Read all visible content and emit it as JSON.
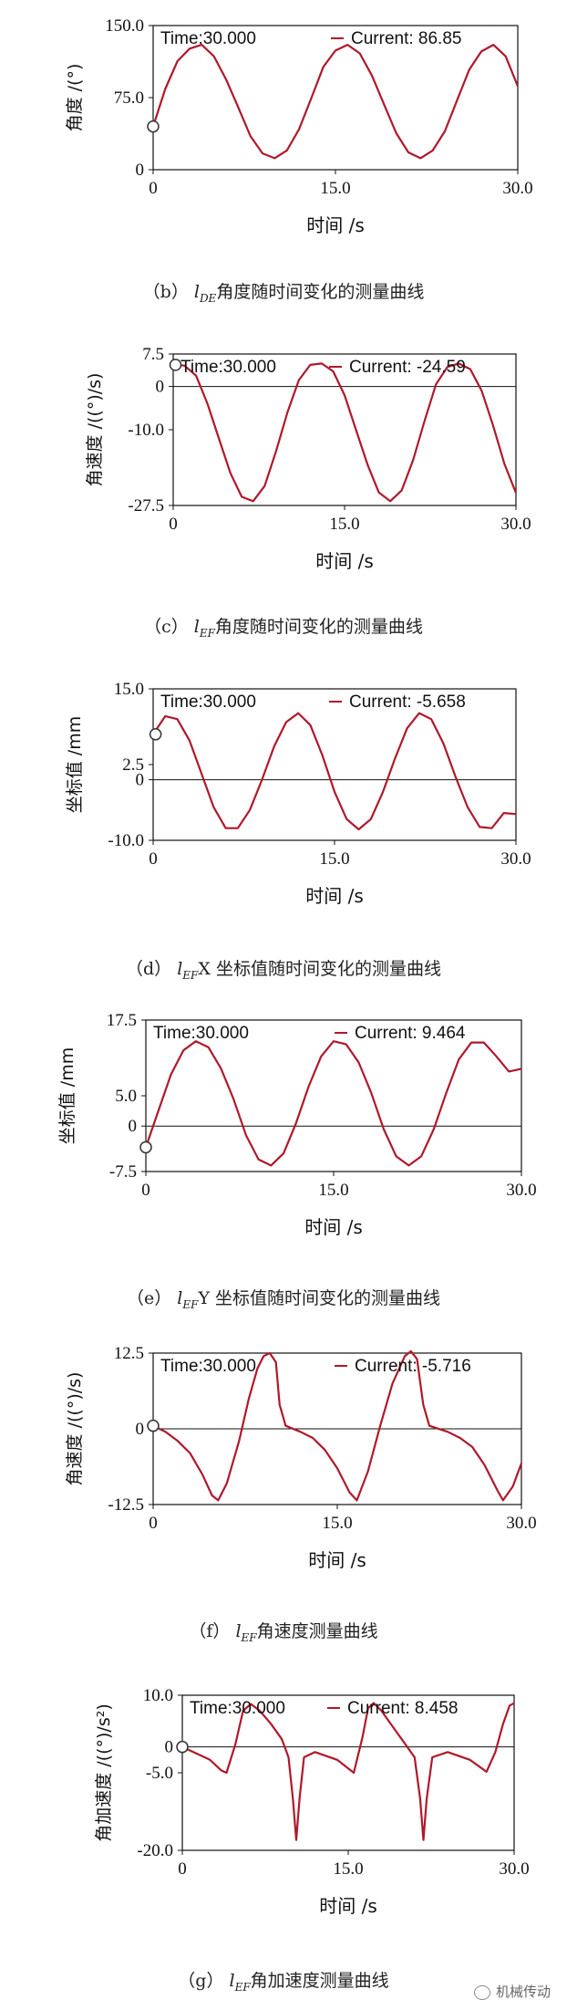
{
  "chart_data": [
    {
      "type": "line",
      "id": "b",
      "ylabel": "角度 /(°)",
      "xlabel": "时间 /s",
      "xlim": [
        0,
        30
      ],
      "ylim": [
        0,
        150
      ],
      "x_ticks": [
        "0",
        "15.0",
        "30.0"
      ],
      "y_ticks": [
        "0",
        "75.0",
        "150.0"
      ],
      "time_label": "Time:30.000",
      "current_label": "Current: 86.85",
      "series": [
        {
          "values": [
            [
              0,
              45
            ],
            [
              1.0,
              84
            ],
            [
              2.0,
              113
            ],
            [
              3.0,
              126
            ],
            [
              4.0,
              130
            ],
            [
              5.0,
              118
            ],
            [
              6.0,
              94
            ],
            [
              7.0,
              65
            ],
            [
              8.0,
              35
            ],
            [
              9.0,
              17
            ],
            [
              10.0,
              12
            ],
            [
              11.0,
              20
            ],
            [
              12.0,
              42
            ],
            [
              13.0,
              74
            ],
            [
              14.0,
              107
            ],
            [
              15.0,
              124
            ],
            [
              16.0,
              130
            ],
            [
              17.0,
              121
            ],
            [
              18.0,
              98
            ],
            [
              19.0,
              68
            ],
            [
              20.0,
              38
            ],
            [
              21.0,
              18
            ],
            [
              22.0,
              12
            ],
            [
              23.0,
              20
            ],
            [
              24.0,
              40
            ],
            [
              25.0,
              72
            ],
            [
              26.0,
              104
            ],
            [
              27.0,
              123
            ],
            [
              28.0,
              130
            ],
            [
              29.0,
              118
            ],
            [
              30.0,
              87
            ]
          ]
        }
      ],
      "marker": [
        0,
        45
      ]
    },
    {
      "type": "line",
      "id": "c",
      "ylabel": "角速度 /((°)/s)",
      "xlabel": "时间 /s",
      "xlim": [
        0,
        30
      ],
      "ylim": [
        -27.5,
        7.5
      ],
      "x_ticks": [
        "0",
        "15.0",
        "30.0"
      ],
      "y_ticks": [
        "7.5",
        "0",
        "-10.0",
        "-27.5"
      ],
      "time_label": "Time:30.000",
      "current_label": "Current: -24.59",
      "series": [
        {
          "values": [
            [
              0,
              5.2
            ],
            [
              1.0,
              4.8
            ],
            [
              2.0,
              2.5
            ],
            [
              3.0,
              -4
            ],
            [
              4.0,
              -12
            ],
            [
              5.0,
              -20
            ],
            [
              6.0,
              -25.5
            ],
            [
              7.0,
              -26.5
            ],
            [
              8.0,
              -23
            ],
            [
              9.0,
              -15
            ],
            [
              10.0,
              -6
            ],
            [
              11.0,
              1.5
            ],
            [
              12.0,
              5.0
            ],
            [
              13.0,
              5.3
            ],
            [
              14.0,
              3.5
            ],
            [
              15.0,
              -2
            ],
            [
              16.0,
              -10
            ],
            [
              17.0,
              -18
            ],
            [
              18.0,
              -24.5
            ],
            [
              19.0,
              -26.5
            ],
            [
              20.0,
              -24
            ],
            [
              21.0,
              -17
            ],
            [
              22.0,
              -8
            ],
            [
              23.0,
              0.5
            ],
            [
              24.0,
              4.5
            ],
            [
              25.0,
              5.3
            ],
            [
              26.0,
              4
            ],
            [
              27.0,
              -1
            ],
            [
              28.0,
              -9
            ],
            [
              29.0,
              -18
            ],
            [
              30.0,
              -24.6
            ]
          ]
        }
      ],
      "marker": [
        0.2,
        5.0
      ]
    },
    {
      "type": "line",
      "id": "d",
      "ylabel": "坐标值 /mm",
      "xlabel": "时间 /s",
      "xlim": [
        0,
        30
      ],
      "ylim": [
        -10,
        15
      ],
      "x_ticks": [
        "0",
        "15.0",
        "30.0"
      ],
      "y_ticks": [
        "15.0",
        "2.5",
        "0",
        "-10.0"
      ],
      "time_label": "Time:30.000",
      "current_label": "Current: -5.658",
      "series": [
        {
          "values": [
            [
              0,
              7.5
            ],
            [
              1.0,
              10.5
            ],
            [
              2.0,
              10.0
            ],
            [
              3.0,
              6.5
            ],
            [
              4.0,
              1.0
            ],
            [
              5.0,
              -4.5
            ],
            [
              6.0,
              -8.0
            ],
            [
              7.0,
              -8.0
            ],
            [
              8.0,
              -5.0
            ],
            [
              9.0,
              0.0
            ],
            [
              10.0,
              5.5
            ],
            [
              11.0,
              9.5
            ],
            [
              12.0,
              11.0
            ],
            [
              13.0,
              9.0
            ],
            [
              14.0,
              4.0
            ],
            [
              15.0,
              -2.0
            ],
            [
              16.0,
              -6.5
            ],
            [
              17.0,
              -8.2
            ],
            [
              18.0,
              -6.5
            ],
            [
              19.0,
              -2.0
            ],
            [
              20.0,
              3.5
            ],
            [
              21.0,
              8.5
            ],
            [
              22.0,
              11.0
            ],
            [
              23.0,
              10.0
            ],
            [
              24.0,
              6.0
            ],
            [
              25.0,
              0.5
            ],
            [
              26.0,
              -4.5
            ],
            [
              27.0,
              -7.8
            ],
            [
              28.0,
              -8.0
            ],
            [
              29.0,
              -5.5
            ],
            [
              30.0,
              -5.66
            ]
          ]
        }
      ],
      "marker": [
        0.2,
        7.5
      ]
    },
    {
      "type": "line",
      "id": "e",
      "ylabel": "坐标值 /mm",
      "xlabel": "时间 /s",
      "xlim": [
        0,
        30
      ],
      "ylim": [
        -7.5,
        17.5
      ],
      "x_ticks": [
        "0",
        "15.0",
        "30.0"
      ],
      "y_ticks": [
        "17.5",
        "5.0",
        "0",
        "-7.5"
      ],
      "time_label": "Time:30.000",
      "current_label": "Current: 9.464",
      "series": [
        {
          "values": [
            [
              0,
              -3.5
            ],
            [
              1.0,
              2.5
            ],
            [
              2.0,
              8.5
            ],
            [
              3.0,
              12.5
            ],
            [
              4.0,
              14.0
            ],
            [
              5.0,
              13.0
            ],
            [
              6.0,
              9.5
            ],
            [
              7.0,
              4.5
            ],
            [
              8.0,
              -1.5
            ],
            [
              9.0,
              -5.5
            ],
            [
              10.0,
              -6.5
            ],
            [
              11.0,
              -4.5
            ],
            [
              12.0,
              0.5
            ],
            [
              13.0,
              6.5
            ],
            [
              14.0,
              11.5
            ],
            [
              15.0,
              14.0
            ],
            [
              16.0,
              13.5
            ],
            [
              17.0,
              10.5
            ],
            [
              18.0,
              5.5
            ],
            [
              19.0,
              -0.5
            ],
            [
              20.0,
              -5.0
            ],
            [
              21.0,
              -6.5
            ],
            [
              22.0,
              -5.0
            ],
            [
              23.0,
              -0.5
            ],
            [
              24.0,
              5.5
            ],
            [
              25.0,
              11.0
            ],
            [
              26.0,
              13.8
            ],
            [
              27.0,
              13.8
            ],
            [
              28.0,
              11.5
            ],
            [
              29.0,
              9.0
            ],
            [
              30.0,
              9.46
            ]
          ]
        }
      ],
      "marker": [
        0,
        -3.5
      ]
    },
    {
      "type": "line",
      "id": "f",
      "ylabel": "角速度 /((°)/s)",
      "xlabel": "时间 /s",
      "xlim": [
        0,
        30
      ],
      "ylim": [
        -12.5,
        12.5
      ],
      "x_ticks": [
        "0",
        "15.0",
        "30.0"
      ],
      "y_ticks": [
        "12.5",
        "0",
        "-12.5"
      ],
      "time_label": "Time:30.000",
      "current_label": "Current: -5.716",
      "series": [
        {
          "values": [
            [
              0,
              0.5
            ],
            [
              1.0,
              -0.5
            ],
            [
              2.0,
              -2.0
            ],
            [
              3.0,
              -4.0
            ],
            [
              4.0,
              -7.5
            ],
            [
              4.8,
              -11.0
            ],
            [
              5.3,
              -11.8
            ],
            [
              6.0,
              -9.0
            ],
            [
              7.0,
              -2.0
            ],
            [
              7.8,
              5.0
            ],
            [
              8.5,
              10.0
            ],
            [
              9.0,
              12.0
            ],
            [
              9.5,
              12.5
            ],
            [
              10.0,
              11.0
            ],
            [
              10.3,
              4.0
            ],
            [
              10.8,
              0.5
            ],
            [
              12.0,
              -0.5
            ],
            [
              13.0,
              -1.5
            ],
            [
              14.0,
              -3.5
            ],
            [
              15.0,
              -6.5
            ],
            [
              16.0,
              -10.5
            ],
            [
              16.6,
              -11.8
            ],
            [
              17.5,
              -7.0
            ],
            [
              18.5,
              0.5
            ],
            [
              19.5,
              7.5
            ],
            [
              20.5,
              12.0
            ],
            [
              21.0,
              12.8
            ],
            [
              21.5,
              11.5
            ],
            [
              22.0,
              4.0
            ],
            [
              22.5,
              0.5
            ],
            [
              24.0,
              -0.5
            ],
            [
              25.0,
              -1.5
            ],
            [
              26.0,
              -3.0
            ],
            [
              27.0,
              -6.0
            ],
            [
              28.0,
              -10.0
            ],
            [
              28.5,
              -11.8
            ],
            [
              29.3,
              -9.5
            ],
            [
              30.0,
              -5.7
            ]
          ]
        }
      ],
      "marker": [
        0,
        0.5
      ]
    },
    {
      "type": "line",
      "id": "g",
      "ylabel": "角加速度 /((°)/s²)",
      "xlabel": "时间 /s",
      "xlim": [
        0,
        30
      ],
      "ylim": [
        -20,
        10
      ],
      "x_ticks": [
        "0",
        "15.0",
        "30.0"
      ],
      "y_ticks": [
        "10.0",
        "0",
        "-5.0",
        "-20.0"
      ],
      "time_label": "Time:30.000",
      "current_label": "Current: 8.458",
      "series": [
        {
          "values": [
            [
              0,
              0.0
            ],
            [
              1.0,
              -1.0
            ],
            [
              2.5,
              -2.5
            ],
            [
              3.5,
              -4.5
            ],
            [
              4.0,
              -5.0
            ],
            [
              4.8,
              0.5
            ],
            [
              5.5,
              7.0
            ],
            [
              6.2,
              8.3
            ],
            [
              7.0,
              7.0
            ],
            [
              8.0,
              4.5
            ],
            [
              9.0,
              1.5
            ],
            [
              9.6,
              -2.0
            ],
            [
              10.0,
              -10.0
            ],
            [
              10.3,
              -18.0
            ],
            [
              10.6,
              -10.0
            ],
            [
              11.0,
              -2.0
            ],
            [
              12.0,
              -1.0
            ],
            [
              14.0,
              -2.5
            ],
            [
              15.5,
              -5.0
            ],
            [
              16.3,
              2.0
            ],
            [
              16.8,
              7.5
            ],
            [
              17.3,
              8.5
            ],
            [
              18.0,
              7.0
            ],
            [
              19.0,
              4.0
            ],
            [
              20.0,
              1.0
            ],
            [
              21.0,
              -2.0
            ],
            [
              21.5,
              -10.0
            ],
            [
              21.8,
              -18.0
            ],
            [
              22.1,
              -10.0
            ],
            [
              22.6,
              -2.0
            ],
            [
              24.0,
              -1.0
            ],
            [
              26.0,
              -2.5
            ],
            [
              27.5,
              -4.8
            ],
            [
              28.3,
              -1.0
            ],
            [
              29.0,
              4.5
            ],
            [
              29.6,
              8.0
            ],
            [
              30.0,
              8.46
            ]
          ]
        }
      ],
      "marker": [
        0,
        0.0
      ]
    }
  ],
  "captions": [
    {
      "prefix": "（b）",
      "var": "l",
      "sub": "DE",
      "text": "角度随时间变化的测量曲线"
    },
    {
      "prefix": "（c）",
      "var": "l",
      "sub": "EF",
      "text": "角度随时间变化的测量曲线"
    },
    {
      "prefix": "（d）",
      "var": "l",
      "sub": "EF",
      "text": "X 坐标值随时间变化的测量曲线"
    },
    {
      "prefix": "（e）",
      "var": "l",
      "sub": "EF",
      "text": "Y 坐标值随时间变化的测量曲线"
    },
    {
      "prefix": "（f）",
      "var": "l",
      "sub": "EF",
      "text": "角速度测量曲线"
    },
    {
      "prefix": "（g）",
      "var": "l",
      "sub": "EF",
      "text": "角加速度测量曲线"
    }
  ],
  "watermark": "机械传动",
  "colors": {
    "curve": "#b0182a",
    "axis": "#111111",
    "marker": "#333333"
  }
}
